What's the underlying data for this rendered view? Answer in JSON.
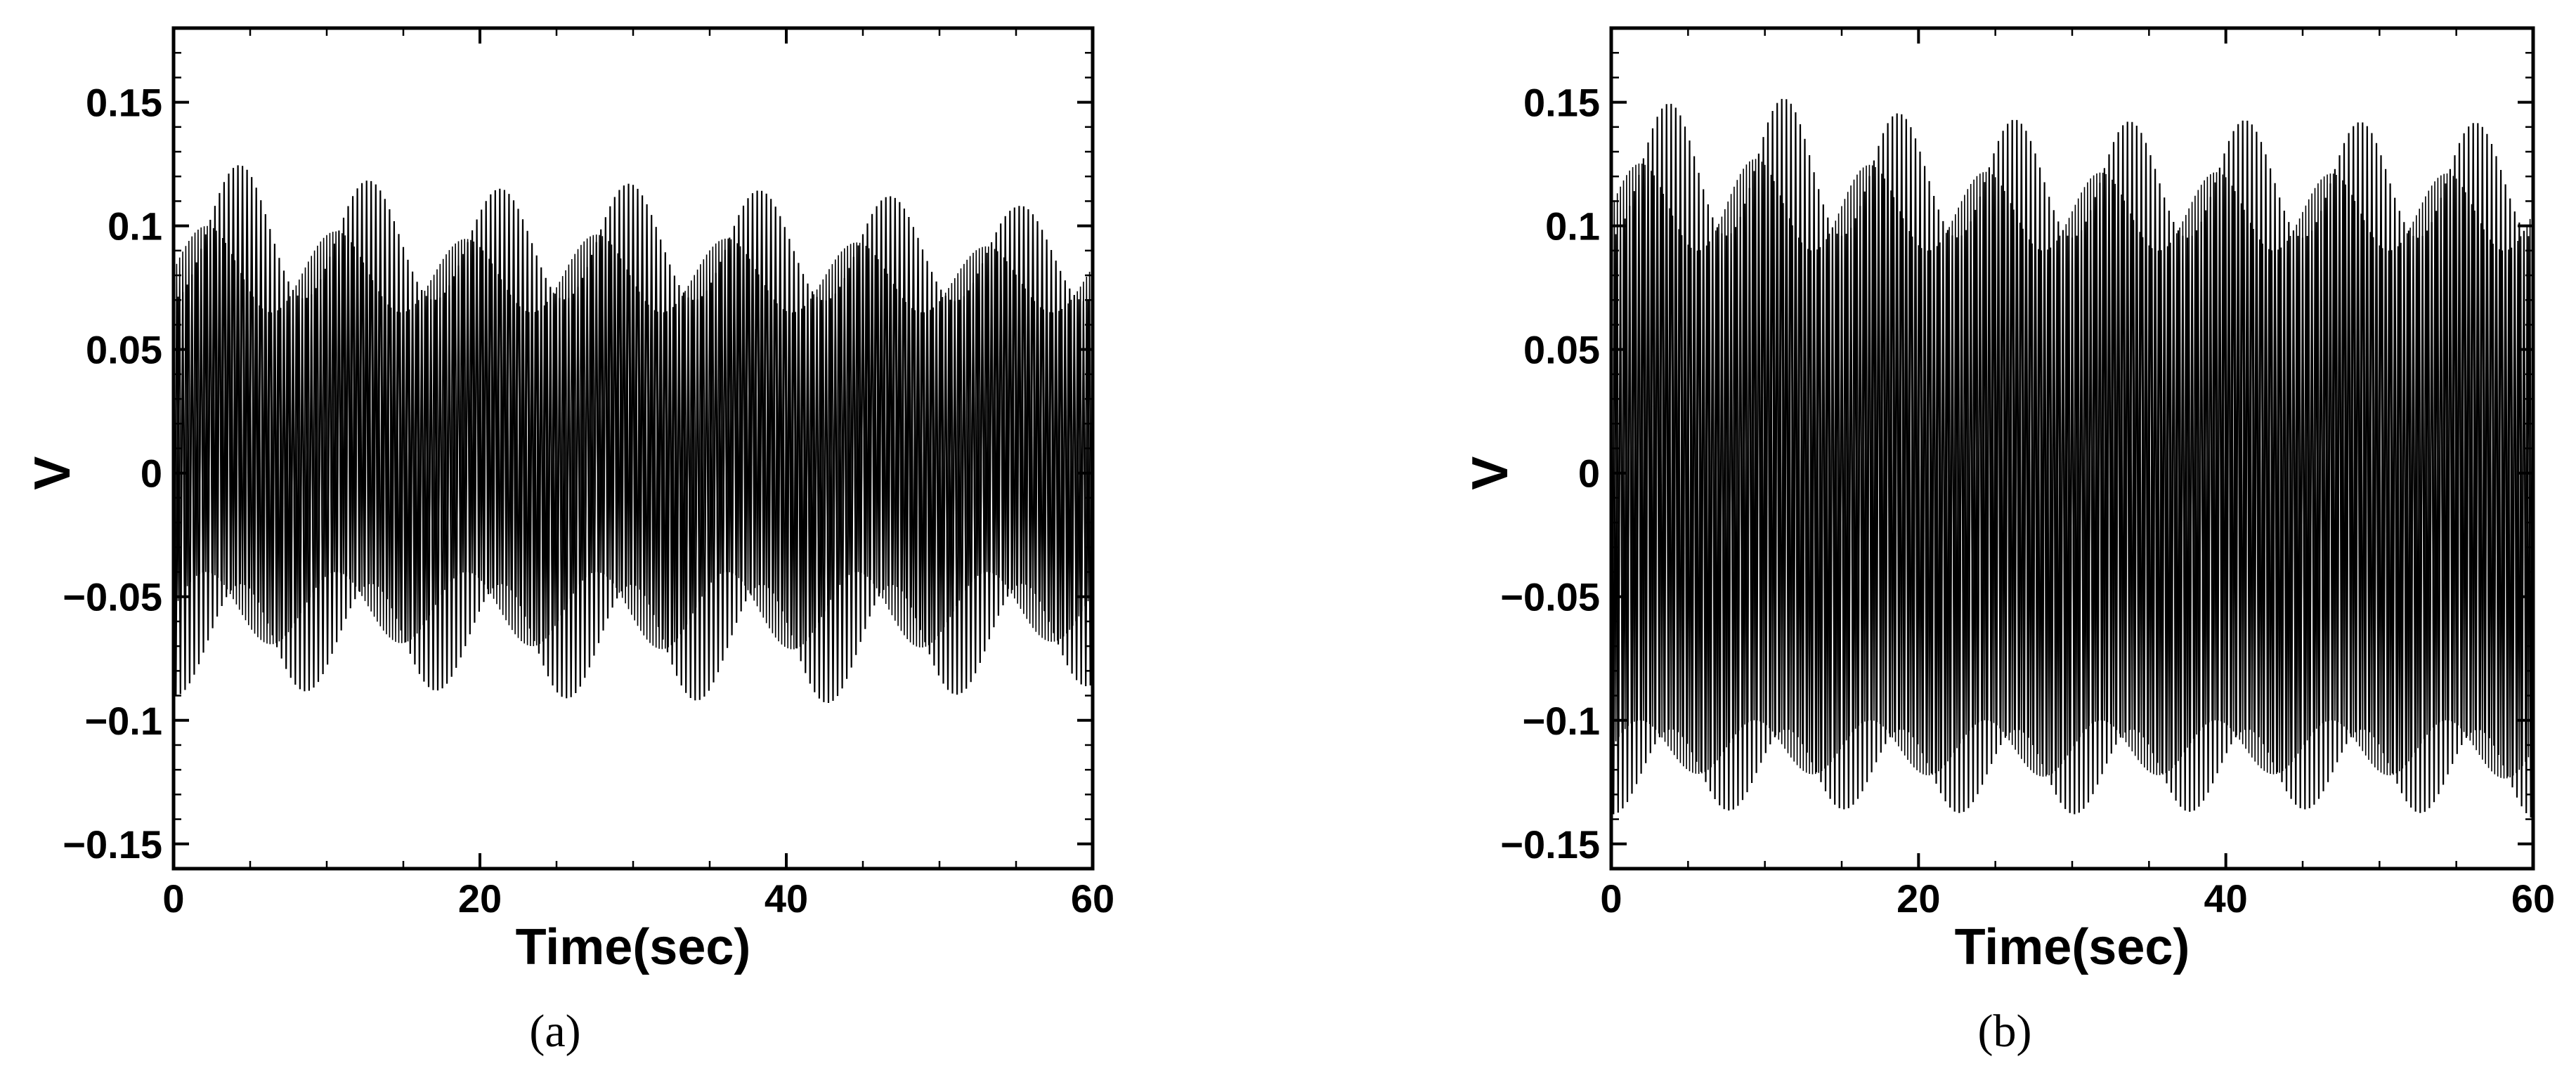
{
  "chart_data": [
    {
      "type": "line",
      "xlabel": "Time(sec)",
      "ylabel": "V",
      "caption": "(a)",
      "xlim": [
        0,
        60
      ],
      "ylim": [
        -0.16,
        0.18
      ],
      "xticks": [
        0,
        20,
        40,
        60
      ],
      "yticks": [
        -0.15,
        -0.1,
        -0.05,
        0,
        0.05,
        0.1,
        0.15
      ],
      "xtick_labels": [
        "0",
        "20",
        "40",
        "60"
      ],
      "ytick_labels": [
        "−0.15",
        "−0.1",
        "−0.05",
        "0",
        "0.05",
        "0.1",
        "0.15"
      ],
      "grid": false,
      "line_color": "#000000",
      "signal": {
        "description": "dense oscillation with beating envelope",
        "oscillation_period_sec": 0.3,
        "beat_period_sec": 8.5,
        "envelope_x": [
          0,
          5,
          10,
          15,
          20,
          25,
          30,
          35,
          40,
          45,
          50,
          55,
          60
        ],
        "upper_envelope": [
          0.122,
          0.125,
          0.12,
          0.117,
          0.114,
          0.118,
          0.117,
          0.115,
          0.114,
          0.112,
          0.112,
          0.108,
          0.11
        ],
        "lower_envelope": [
          -0.09,
          -0.089,
          -0.088,
          -0.088,
          -0.088,
          -0.091,
          -0.092,
          -0.092,
          -0.092,
          -0.094,
          -0.09,
          -0.088,
          -0.086
        ],
        "inner_upper": 0.065,
        "inner_lower": -0.04
      }
    },
    {
      "type": "line",
      "xlabel": "Time(sec)",
      "ylabel": "V",
      "caption": "(b)",
      "xlim": [
        0,
        60
      ],
      "ylim": [
        -0.16,
        0.18
      ],
      "xticks": [
        0,
        20,
        40,
        60
      ],
      "yticks": [
        -0.15,
        -0.1,
        -0.05,
        0,
        0.05,
        0.1,
        0.15
      ],
      "xtick_labels": [
        "0",
        "20",
        "40",
        "60"
      ],
      "ytick_labels": [
        "−0.15",
        "−0.1",
        "−0.05",
        "0",
        "0.05",
        "0.1",
        "0.15"
      ],
      "grid": false,
      "line_color": "#000000",
      "signal": {
        "description": "dense oscillation with beating envelope",
        "oscillation_period_sec": 0.3,
        "beat_period_sec": 7.5,
        "envelope_x": [
          0,
          5,
          10,
          15,
          20,
          25,
          30,
          35,
          40,
          45,
          50,
          55,
          60
        ],
        "upper_envelope": [
          0.148,
          0.15,
          0.152,
          0.15,
          0.144,
          0.143,
          0.143,
          0.142,
          0.143,
          0.142,
          0.142,
          0.142,
          0.141
        ],
        "lower_envelope": [
          -0.138,
          -0.136,
          -0.137,
          -0.136,
          -0.137,
          -0.138,
          -0.138,
          -0.137,
          -0.137,
          -0.136,
          -0.137,
          -0.138,
          -0.14
        ],
        "inner_upper": 0.09,
        "inner_lower": -0.1
      }
    }
  ]
}
